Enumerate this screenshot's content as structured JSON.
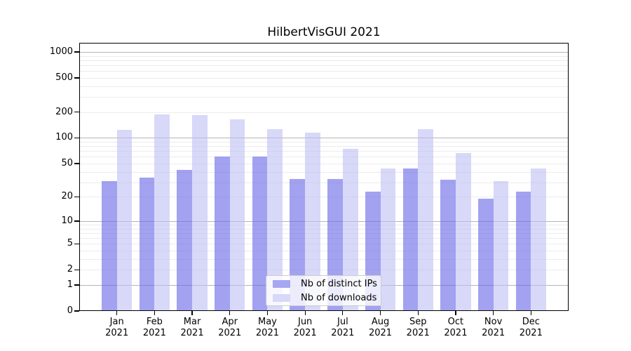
{
  "title": "HilbertVisGUI 2021",
  "chart_data": {
    "type": "bar",
    "title": "HilbertVisGUI 2021",
    "x": {
      "months": [
        "Jan",
        "Feb",
        "Mar",
        "Apr",
        "May",
        "Jun",
        "Jul",
        "Aug",
        "Sep",
        "Oct",
        "Nov",
        "Dec"
      ],
      "year": "2021"
    },
    "categories": [
      "Jan 2021",
      "Feb 2021",
      "Mar 2021",
      "Apr 2021",
      "May 2021",
      "Jun 2021",
      "Jul 2021",
      "Aug 2021",
      "Sep 2021",
      "Oct 2021",
      "Nov 2021",
      "Dec 2021"
    ],
    "series": [
      {
        "name": "Nb of distinct IPs",
        "color": "#a6a6f2",
        "fill": "rgba(105,105,232,0.62)",
        "values": [
          31,
          34,
          42,
          60,
          60,
          33,
          33,
          23,
          44,
          32,
          19,
          23
        ]
      },
      {
        "name": "Nb of downloads",
        "color": "#d8d8f9",
        "fill": "rgba(190,190,245,0.60)",
        "values": [
          125,
          188,
          185,
          165,
          126,
          115,
          75,
          44,
          126,
          67,
          31,
          44
        ]
      }
    ],
    "y_axis": {
      "ticks": [
        0,
        1,
        2,
        5,
        10,
        20,
        50,
        100,
        200,
        500,
        1000
      ],
      "scale": "log1p",
      "ylim_top_approx": 1275
    },
    "grid": {
      "on": true,
      "major_at": [
        1,
        10,
        100,
        1000
      ],
      "major_color": "#b5b5b5",
      "minor_color": "#ececec"
    },
    "legend": {
      "position": "bottom-center",
      "entries": [
        "Nb of distinct IPs",
        "Nb of downloads"
      ]
    },
    "xlabel": "",
    "ylabel": ""
  }
}
